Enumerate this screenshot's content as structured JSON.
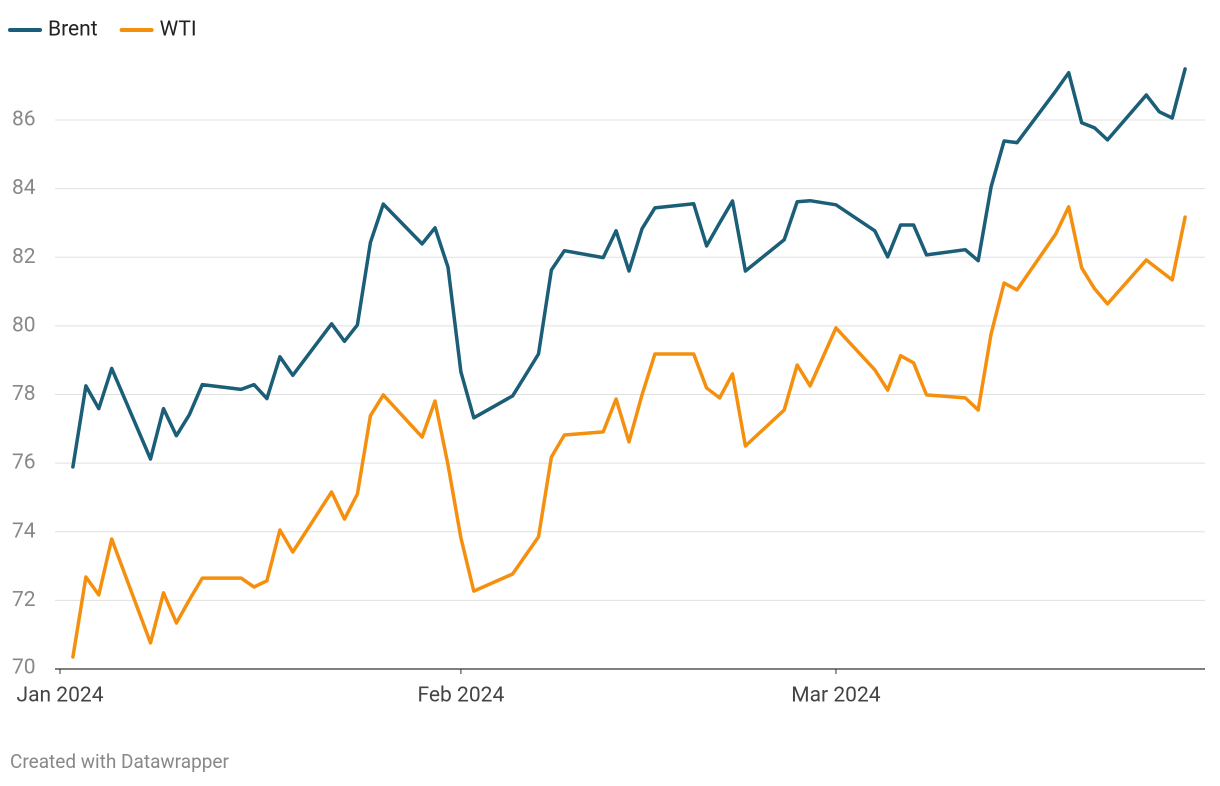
{
  "chart_data": {
    "type": "line",
    "credit": "Created with Datawrapper",
    "x": [
      "2024-01-02",
      "2024-01-03",
      "2024-01-04",
      "2024-01-05",
      "2024-01-08",
      "2024-01-09",
      "2024-01-10",
      "2024-01-11",
      "2024-01-12",
      "2024-01-15",
      "2024-01-16",
      "2024-01-17",
      "2024-01-18",
      "2024-01-19",
      "2024-01-22",
      "2024-01-23",
      "2024-01-24",
      "2024-01-25",
      "2024-01-26",
      "2024-01-29",
      "2024-01-30",
      "2024-01-31",
      "2024-02-01",
      "2024-02-02",
      "2024-02-05",
      "2024-02-06",
      "2024-02-07",
      "2024-02-08",
      "2024-02-09",
      "2024-02-12",
      "2024-02-13",
      "2024-02-14",
      "2024-02-15",
      "2024-02-16",
      "2024-02-19",
      "2024-02-20",
      "2024-02-21",
      "2024-02-22",
      "2024-02-23",
      "2024-02-26",
      "2024-02-27",
      "2024-02-28",
      "2024-03-01",
      "2024-03-04",
      "2024-03-05",
      "2024-03-06",
      "2024-03-07",
      "2024-03-08",
      "2024-03-11",
      "2024-03-12",
      "2024-03-13",
      "2024-03-14",
      "2024-03-15",
      "2024-03-18",
      "2024-03-19",
      "2024-03-20",
      "2024-03-21",
      "2024-03-22",
      "2024-03-25",
      "2024-03-26",
      "2024-03-27",
      "2024-03-28"
    ],
    "series": [
      {
        "name": "Brent",
        "color": "#1b5e78",
        "values": [
          75.89,
          78.25,
          77.59,
          78.76,
          76.12,
          77.59,
          76.8,
          77.41,
          78.29,
          78.15,
          78.29,
          77.88,
          79.1,
          78.56,
          80.06,
          79.55,
          80.03,
          82.43,
          83.55,
          82.39,
          82.86,
          81.71,
          78.66,
          77.32,
          77.96,
          78.57,
          79.18,
          81.63,
          82.19,
          81.99,
          82.77,
          81.6,
          82.83,
          83.44,
          83.56,
          82.33,
          83.0,
          83.64,
          81.6,
          82.51,
          83.62,
          83.65,
          83.53,
          82.77,
          82.01,
          82.94,
          82.94,
          82.07,
          82.22,
          81.9,
          84.05,
          85.39,
          85.34,
          86.85,
          87.38,
          85.92,
          85.77,
          85.42,
          86.73,
          86.24,
          86.06,
          87.49
        ]
      },
      {
        "name": "WTI",
        "color": "#f5900f",
        "values": [
          70.35,
          72.68,
          72.16,
          73.79,
          70.76,
          72.22,
          71.34,
          72.01,
          72.65,
          72.65,
          72.39,
          72.57,
          74.05,
          73.41,
          75.16,
          74.37,
          75.1,
          77.38,
          77.99,
          76.76,
          77.81,
          75.95,
          73.82,
          72.27,
          72.77,
          73.31,
          73.85,
          76.18,
          76.82,
          76.91,
          77.87,
          76.62,
          77.99,
          79.18,
          79.18,
          78.19,
          77.9,
          78.6,
          76.5,
          77.55,
          78.86,
          78.25,
          79.94,
          78.72,
          78.13,
          79.13,
          78.92,
          77.99,
          77.9,
          77.55,
          79.77,
          81.25,
          81.05,
          82.68,
          83.47,
          81.69,
          81.08,
          80.64,
          81.92,
          81.63,
          81.34,
          83.17
        ]
      }
    ],
    "xlim": [
      "2024-01-01",
      "2024-03-30"
    ],
    "xticks": [
      {
        "value": "2024-01-01",
        "label": "Jan 2024"
      },
      {
        "value": "2024-02-01",
        "label": "Feb 2024"
      },
      {
        "value": "2024-03-01",
        "label": "Mar 2024"
      }
    ],
    "ylim": [
      70,
      88
    ],
    "yticks": [
      70,
      72,
      74,
      76,
      78,
      80,
      82,
      84,
      86
    ],
    "grid": true
  }
}
